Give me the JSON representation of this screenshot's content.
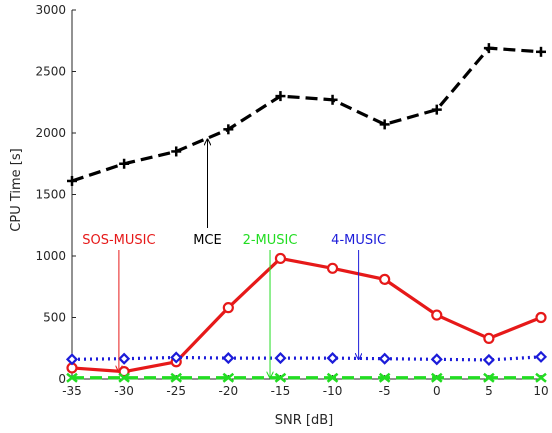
{
  "chart_data": {
    "type": "line",
    "title": "",
    "xlabel": "SNR [dB]",
    "ylabel": "CPU Time [s]",
    "x": [
      -35,
      -30,
      -25,
      -20,
      -15,
      -10,
      -5,
      0,
      5,
      10
    ],
    "xlim": [
      -35,
      10
    ],
    "ylim": [
      0,
      3000
    ],
    "x_ticks": [
      "-35",
      "-30",
      "-25",
      "-20",
      "-15",
      "-10",
      "-5",
      "0",
      "5",
      "10"
    ],
    "y_ticks": [
      "0",
      "500",
      "1000",
      "1500",
      "2000",
      "2500",
      "3000"
    ],
    "grid": false,
    "legend": "none (inline annotations with arrows)",
    "series": [
      {
        "name": "MCE",
        "values": [
          1610,
          1750,
          1850,
          2030,
          2300,
          2270,
          2070,
          2190,
          2690,
          2660
        ],
        "color": "#000000",
        "line_style": "dashed",
        "marker": "plus"
      },
      {
        "name": "SOS-MUSIC",
        "values": [
          90,
          60,
          140,
          580,
          980,
          900,
          810,
          520,
          330,
          500
        ],
        "color": "#e61919",
        "line_style": "solid",
        "marker": "circle-open"
      },
      {
        "name": "2-MUSIC",
        "values": [
          10,
          10,
          10,
          10,
          10,
          10,
          10,
          10,
          10,
          10
        ],
        "color": "#22dd22",
        "line_style": "dashed",
        "marker": "x"
      },
      {
        "name": "4-MUSIC",
        "values": [
          160,
          165,
          175,
          170,
          170,
          170,
          165,
          160,
          155,
          180
        ],
        "color": "#1c1cd9",
        "line_style": "dotted",
        "marker": "diamond-open"
      }
    ],
    "annotations": [
      {
        "text": "SOS-MUSIC",
        "color": "#e61919",
        "label_at": [
          -30.5,
          1000
        ],
        "arrow_to": [
          -30.5,
          60
        ]
      },
      {
        "text": "MCE",
        "color": "#000000",
        "label_at": [
          -22,
          1000
        ],
        "arrow_to": [
          -22,
          1950
        ]
      },
      {
        "text": "2-MUSIC",
        "color": "#22dd22",
        "label_at": [
          -16,
          1000
        ],
        "arrow_to": [
          -16,
          10
        ]
      },
      {
        "text": "4-MUSIC",
        "color": "#1c1cd9",
        "label_at": [
          -7.5,
          1000
        ],
        "arrow_to": [
          -7.5,
          160
        ]
      }
    ]
  }
}
